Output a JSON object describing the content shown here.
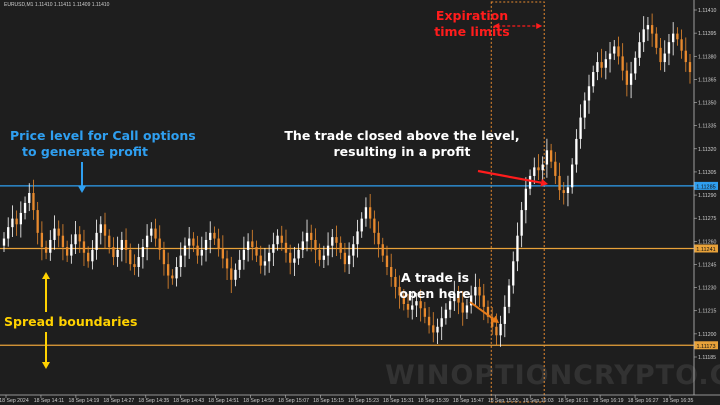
{
  "header": {
    "symbol_info": "EURUSD,M1  1.11410 1.11411 1.11409 1.11410"
  },
  "annotations": {
    "call_level": [
      "Price level for Call options",
      "to generate profit"
    ],
    "closed_note": [
      "The trade closed above the level,",
      "resulting in a profit"
    ],
    "open_note": [
      "A trade is",
      "open here"
    ],
    "spread": "Spread boundaries",
    "expiration": [
      "Expiration",
      "time limits"
    ]
  },
  "watermark": "WINOPTIONCRYPTO.COM",
  "colors": {
    "background": "#1e1e1e",
    "bull_candle": "#ffffff",
    "bear_candle": "#e88a2e",
    "call_level_line": "#2f9ff0",
    "spread_line": "#e8a23a",
    "arrow_blue": "#2f9ff0",
    "arrow_red": "#ff1c1c",
    "arrow_orange": "#e87c1a",
    "arrow_yellow": "#ffd200",
    "axis_text": "#cfcfcf"
  },
  "chart_data": {
    "type": "candlestick",
    "symbol": "EURUSD",
    "timeframe": "M1",
    "ylim": [
      1.1115,
      1.1141
    ],
    "y_ticks": [
      "1.11410",
      "1.11395",
      "1.11380",
      "1.11365",
      "1.11350",
      "1.11335",
      "1.11320",
      "1.11305",
      "1.11290",
      "1.11275",
      "1.11260",
      "1.11245",
      "1.11230",
      "1.11215",
      "1.11200",
      "1.11185"
    ],
    "x_ticks": [
      "18 Sep 2024",
      "18 Sep 14:11",
      "18 Sep 14:19",
      "18 Sep 14:27",
      "18 Sep 14:35",
      "18 Sep 14:43",
      "18 Sep 14:51",
      "18 Sep 14:59",
      "18 Sep 15:07",
      "18 Sep 15:15",
      "18 Sep 15:23",
      "18 Sep 15:31",
      "18 Sep 15:39",
      "18 Sep 15:47",
      "18 Sep 15:55",
      "18 Sep 16:03",
      "18 Sep 16:11",
      "18 Sep 16:19",
      "18 Sep 16:27",
      "18 Sep 16:35"
    ],
    "levels": [
      {
        "label": "1.11285",
        "value": 1.11285,
        "role": "call"
      },
      {
        "label": "1.11241",
        "value": 1.11241,
        "role": "spread-upper"
      },
      {
        "label": "1.11173",
        "value": 1.11173,
        "role": "spread-lower"
      }
    ],
    "expiration_window": {
      "start": "18 Sep 15:55",
      "end": "18 Sep 16:03"
    },
    "close": [
      1.11248,
      1.11256,
      1.11262,
      1.11258,
      1.11266,
      1.11273,
      1.1128,
      1.11268,
      1.11252,
      1.11242,
      1.11238,
      1.11247,
      1.11255,
      1.1125,
      1.11242,
      1.11236,
      1.11244,
      1.11251,
      1.11246,
      1.11238,
      1.11232,
      1.1124,
      1.11252,
      1.11258,
      1.1125,
      1.11242,
      1.11235,
      1.1124,
      1.11247,
      1.1124,
      1.1123,
      1.11228,
      1.11235,
      1.11242,
      1.1125,
      1.11255,
      1.11248,
      1.1124,
      1.1123,
      1.11222,
      1.1122,
      1.11228,
      1.11236,
      1.11243,
      1.11248,
      1.11243,
      1.11236,
      1.1124,
      1.11247,
      1.11252,
      1.11248,
      1.11241,
      1.11234,
      1.11227,
      1.11219,
      1.11226,
      1.11233,
      1.1124,
      1.11246,
      1.11242,
      1.11236,
      1.11229,
      1.11232,
      1.11238,
      1.11244,
      1.1125,
      1.11245,
      1.11238,
      1.11231,
      1.11234,
      1.1124,
      1.11246,
      1.11252,
      1.11247,
      1.1124,
      1.11233,
      1.11236,
      1.11243,
      1.11249,
      1.11245,
      1.11238,
      1.1123,
      1.11236,
      1.11244,
      1.11253,
      1.11262,
      1.1127,
      1.11262,
      1.11252,
      1.11244,
      1.11236,
      1.11228,
      1.11221,
      1.11214,
      1.11208,
      1.11202,
      1.11198,
      1.11201,
      1.11204,
      1.11199,
      1.11193,
      1.11187,
      1.11182,
      1.11186,
      1.11192,
      1.11198,
      1.11204,
      1.11209,
      1.11203,
      1.11196,
      1.11201,
      1.11208,
      1.11214,
      1.11208,
      1.112,
      1.11193,
      1.11186,
      1.1118,
      1.11188,
      1.112,
      1.11215,
      1.11232,
      1.1125,
      1.11268,
      1.11283,
      1.11292,
      1.11298,
      1.11296,
      1.113,
      1.1131,
      1.11302,
      1.11292,
      1.11282,
      1.1128,
      1.11284,
      1.113,
      1.11318,
      1.11333,
      1.11345,
      1.11355,
      1.11365,
      1.11372,
      1.11368,
      1.11374,
      1.11378,
      1.11383,
      1.11376,
      1.11366,
      1.11356,
      1.11364,
      1.11375,
      1.11386,
      1.11395,
      1.11398,
      1.11392,
      1.11382,
      1.11372,
      1.11378,
      1.11386,
      1.11392,
      1.11388,
      1.1138,
      1.11372,
      1.11365
    ]
  }
}
